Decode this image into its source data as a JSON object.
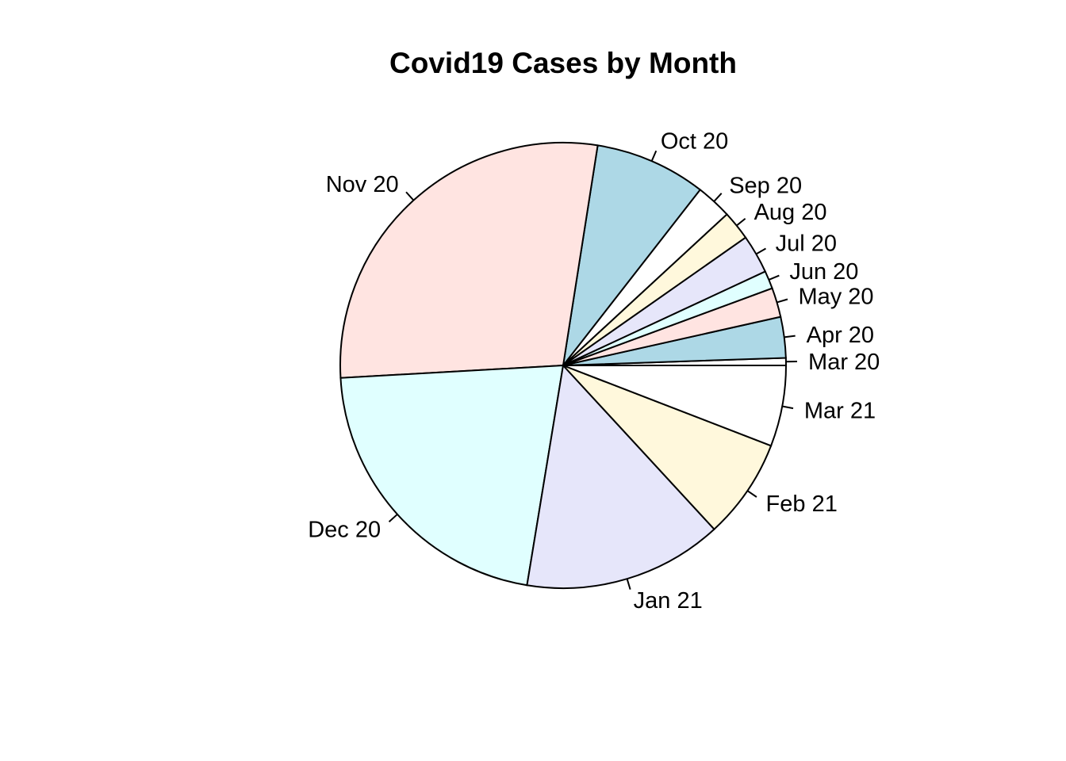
{
  "chart_data": {
    "type": "pie",
    "title": "Covid19 Cases by Month",
    "start": "3 o'clock",
    "direction": "counterclockwise",
    "slices": [
      {
        "label": "Mar 20",
        "value": 0.52,
        "color": "#ffffff"
      },
      {
        "label": "Apr 20",
        "value": 2.85,
        "color": "#add8e6"
      },
      {
        "label": "May 20",
        "value": 2.05,
        "color": "#ffe4e1"
      },
      {
        "label": "Jun 20",
        "value": 1.25,
        "color": "#e0ffff"
      },
      {
        "label": "Jul 20",
        "value": 2.7,
        "color": "#e6e6fa"
      },
      {
        "label": "Aug 20",
        "value": 2.05,
        "color": "#fff8dc"
      },
      {
        "label": "Sep 20",
        "value": 2.5,
        "color": "#ffffff"
      },
      {
        "label": "Oct 20",
        "value": 7.75,
        "color": "#add8e6"
      },
      {
        "label": "Nov 20",
        "value": 27.3,
        "color": "#ffe4e1"
      },
      {
        "label": "Dec 20",
        "value": 20.7,
        "color": "#e0ffff"
      },
      {
        "label": "Jan 21",
        "value": 13.9,
        "color": "#e6e6fa"
      },
      {
        "label": "Feb 21",
        "value": 7.0,
        "color": "#fff8dc"
      },
      {
        "label": "Mar 21",
        "value": 5.65,
        "color": "#ffffff"
      }
    ]
  }
}
